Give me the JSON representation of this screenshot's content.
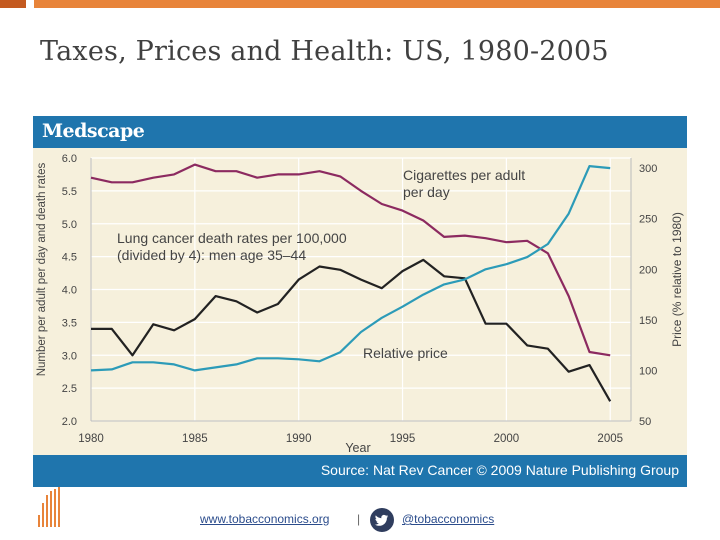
{
  "slide": {
    "title": "Taxes, Prices and Health: US, 1980-2005",
    "accent_color": "#e8843a",
    "footer": {
      "website": "www.tobacconomics.org",
      "separator": "|",
      "handle": "@tobacconomics",
      "icon": "twitter-bird-icon"
    }
  },
  "figure": {
    "brand": "Medscape",
    "source": "Source: Nat Rev Cancer © 2009 Nature Publishing Group",
    "header_color": "#1f75ad",
    "background_color": "#f6f0dc"
  },
  "chart_data": {
    "type": "line",
    "xlabel": "Year",
    "ylabel_left": "Number per adult per day and death rates",
    "ylabel_right": "Price (% relative to 1980)",
    "x_ticks": [
      1980,
      1985,
      1990,
      1995,
      2000,
      2005
    ],
    "xlim": [
      1980,
      2006
    ],
    "y_left_ticks": [
      "2.0",
      "2.5",
      "3.0",
      "3.5",
      "4.0",
      "4.5",
      "5.0",
      "5.5",
      "6.0"
    ],
    "ylim_left": [
      2.0,
      6.0
    ],
    "y_right_ticks": [
      "50",
      "100",
      "150",
      "200",
      "250",
      "300"
    ],
    "ylim_right": [
      50,
      310
    ],
    "grid": true,
    "series": [
      {
        "name": "Cigarettes per adult per day",
        "label": "Cigarettes per adult\nper day",
        "axis": "left",
        "color": "#8c2a60",
        "x": [
          1980,
          1981,
          1982,
          1983,
          1984,
          1985,
          1986,
          1987,
          1988,
          1989,
          1990,
          1991,
          1992,
          1993,
          1994,
          1995,
          1996,
          1997,
          1998,
          1999,
          2000,
          2001,
          2002,
          2003,
          2004,
          2005
        ],
        "y": [
          5.7,
          5.63,
          5.63,
          5.7,
          5.75,
          5.9,
          5.8,
          5.8,
          5.7,
          5.75,
          5.75,
          5.8,
          5.72,
          5.5,
          5.3,
          5.2,
          5.05,
          4.8,
          4.82,
          4.78,
          4.72,
          4.74,
          4.55,
          3.9,
          3.05,
          3.0
        ]
      },
      {
        "name": "Lung cancer death rates per 100,000 (divided by 4): men age 35–44",
        "label": "Lung cancer death rates per 100,000\n(divided by 4): men age 35–44",
        "axis": "left",
        "color": "#222222",
        "x": [
          1980,
          1981,
          1982,
          1983,
          1984,
          1985,
          1986,
          1987,
          1988,
          1989,
          1990,
          1991,
          1992,
          1993,
          1994,
          1995,
          1996,
          1997,
          1998,
          1999,
          2000,
          2001,
          2002,
          2003,
          2004,
          2005
        ],
        "y": [
          3.4,
          3.4,
          3.0,
          3.47,
          3.38,
          3.55,
          3.9,
          3.82,
          3.65,
          3.78,
          4.15,
          4.35,
          4.3,
          4.15,
          4.02,
          4.28,
          4.45,
          4.2,
          4.17,
          3.48,
          3.48,
          3.15,
          3.1,
          2.75,
          2.85,
          2.3
        ]
      },
      {
        "name": "Relative price",
        "label": "Relative price",
        "axis": "right",
        "color": "#2c9bb8",
        "x": [
          1980,
          1981,
          1982,
          1983,
          1984,
          1985,
          1986,
          1987,
          1988,
          1989,
          1990,
          1991,
          1992,
          1993,
          1994,
          1995,
          1996,
          1997,
          1998,
          1999,
          2000,
          2001,
          2002,
          2003,
          2004,
          2005
        ],
        "y": [
          100,
          101,
          108,
          108,
          106,
          100,
          103,
          106,
          112,
          112,
          111,
          109,
          118,
          138,
          152,
          163,
          175,
          185,
          190,
          200,
          205,
          212,
          225,
          255,
          302,
          300
        ]
      }
    ]
  }
}
